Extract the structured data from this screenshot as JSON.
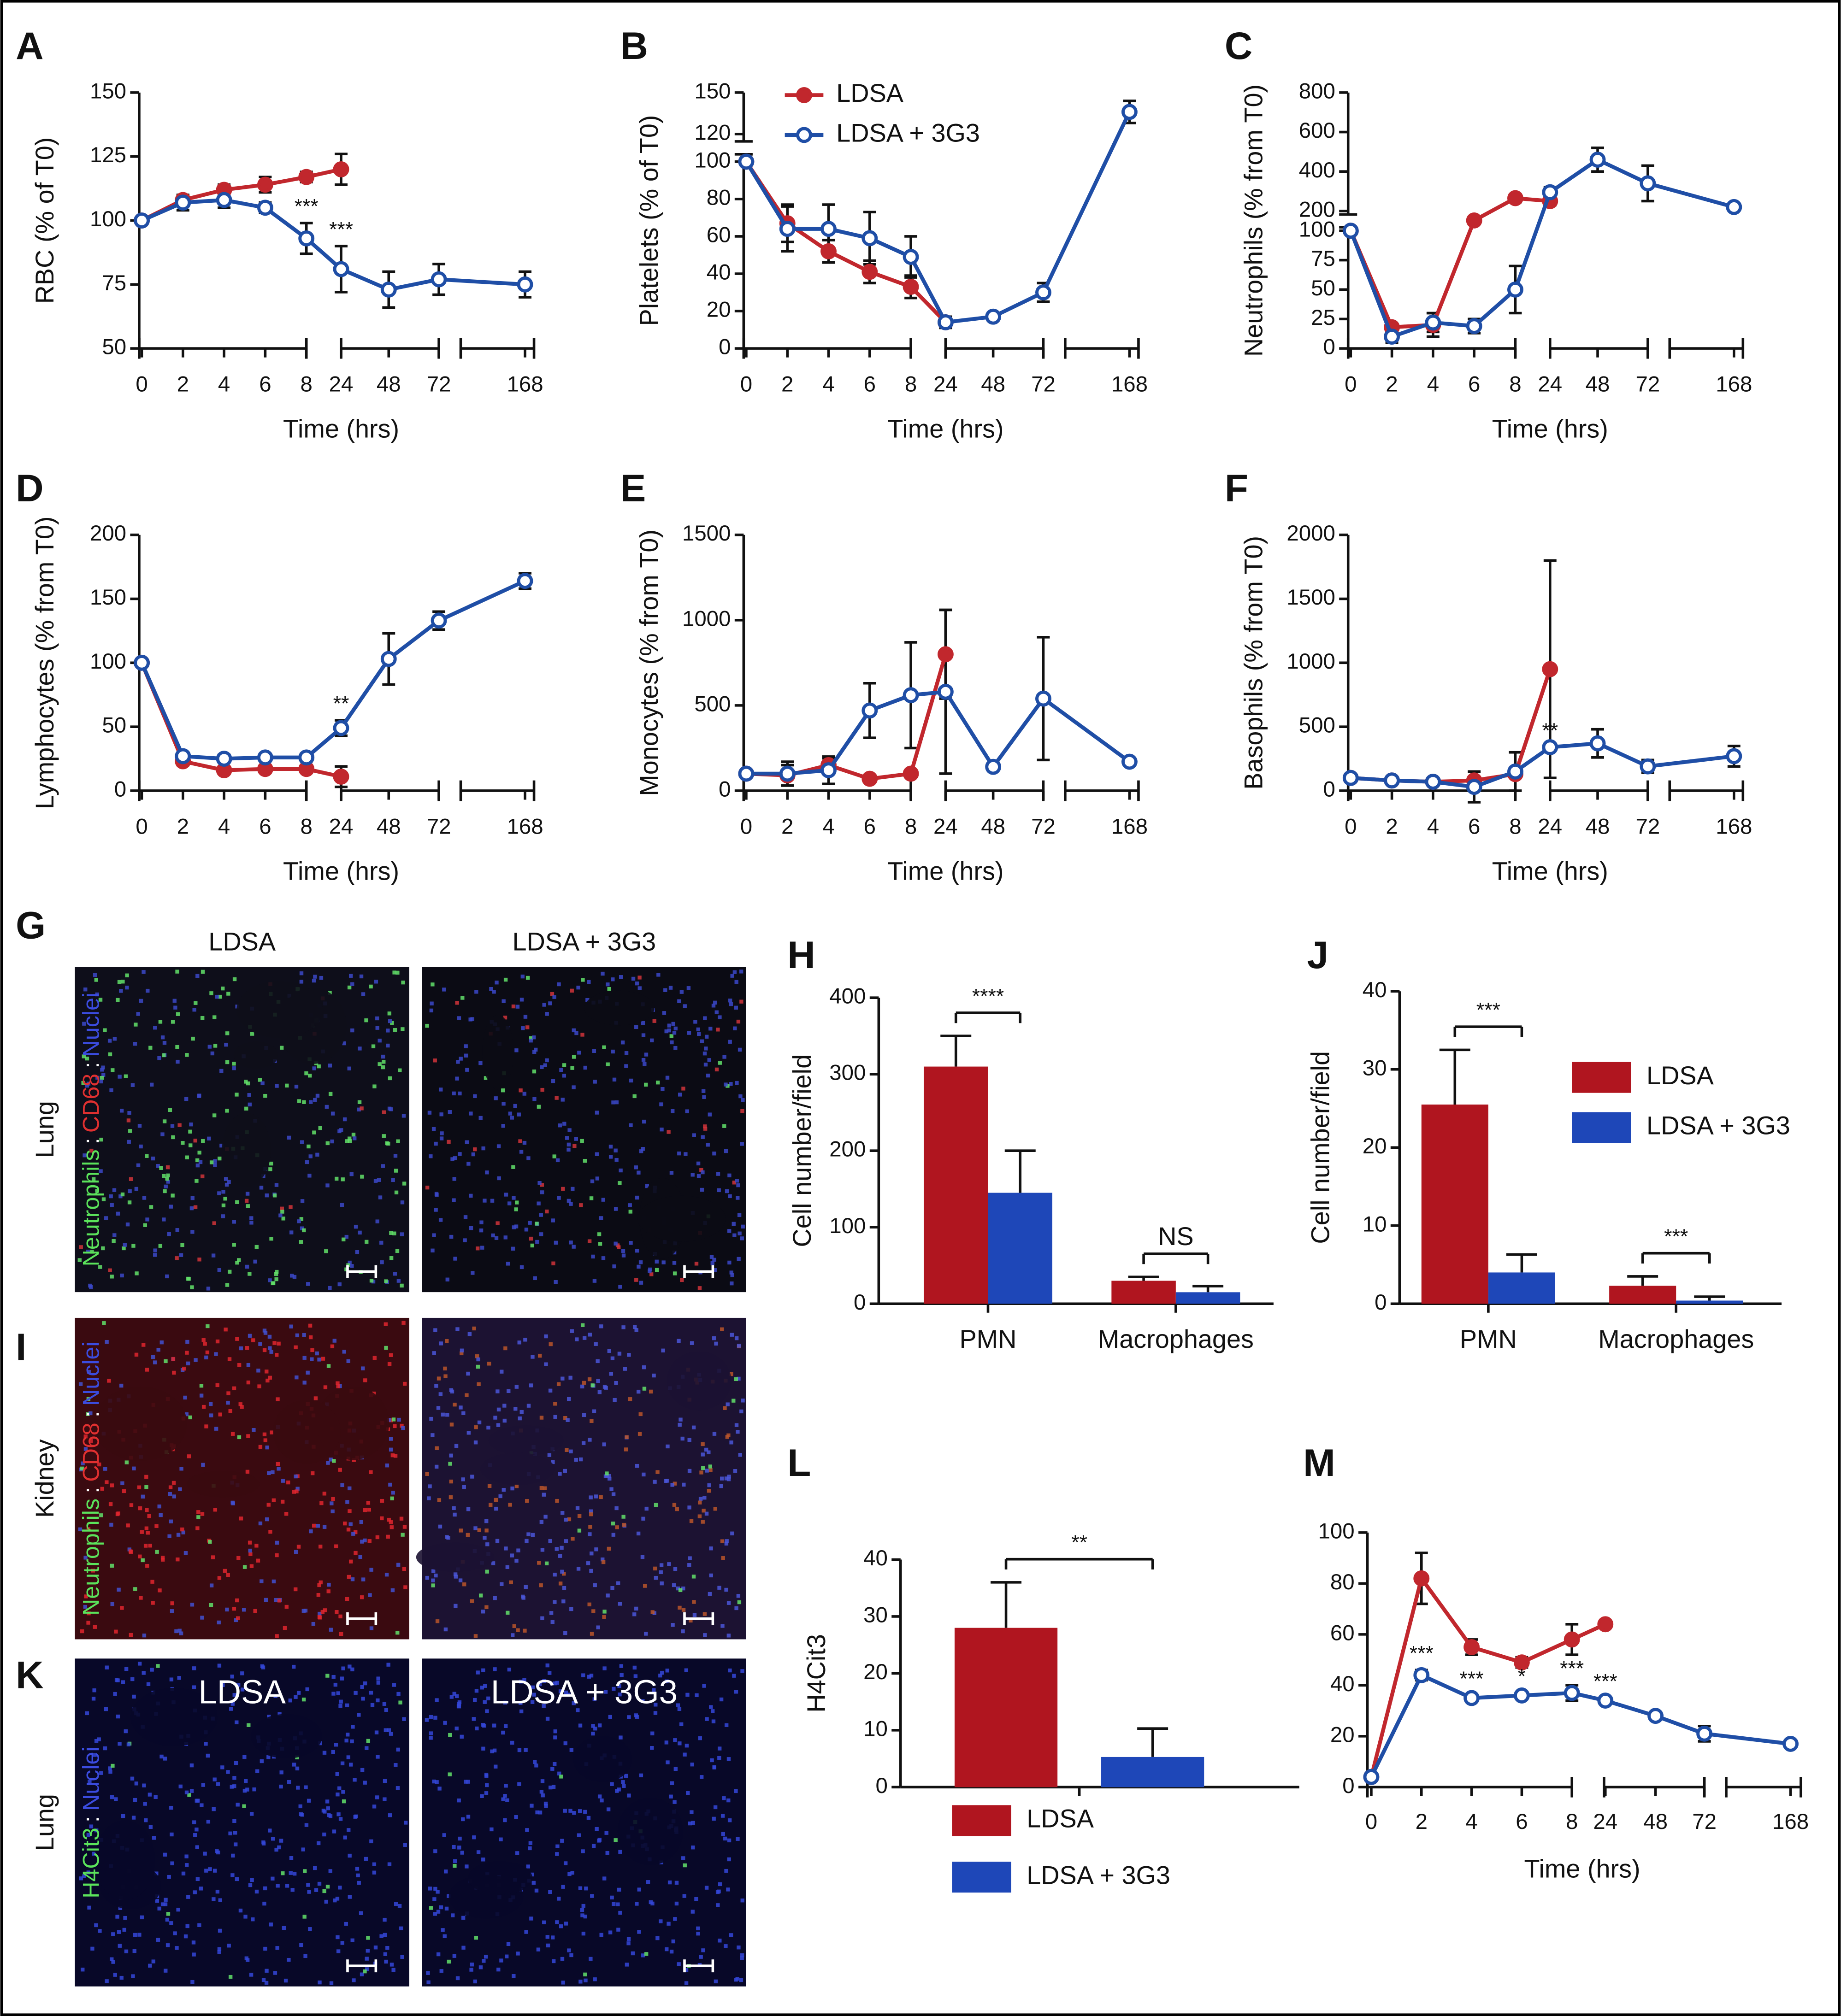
{
  "chart_data": [
    {
      "type": "line",
      "panel": "A",
      "ylabel": "RBC (% of T0)",
      "xlabel": "Time (hrs)",
      "categories": [
        "0",
        "2",
        "4",
        "6",
        "8",
        "24",
        "48",
        "72",
        "168"
      ],
      "ylim": [
        50,
        150
      ],
      "yticks": [
        50,
        75,
        100,
        125,
        150
      ],
      "series": [
        {
          "color": "#c1272d",
          "marker": "filled",
          "values": [
            100,
            108,
            112,
            114,
            117,
            120,
            null,
            null,
            null
          ],
          "errors": [
            0,
            2,
            2,
            3,
            2,
            6,
            null,
            null,
            null
          ]
        },
        {
          "color": "#1f4ea6",
          "marker": "open",
          "values": [
            100,
            107,
            108,
            105,
            93,
            81,
            73,
            77,
            75
          ],
          "errors": [
            0,
            3,
            3,
            2,
            6,
            9,
            7,
            6,
            5
          ]
        }
      ],
      "annotations": [
        null,
        null,
        null,
        null,
        "***",
        "***",
        null,
        null,
        null
      ]
    },
    {
      "type": "line",
      "panel": "B",
      "ylabel": "Platelets (% of T0)",
      "xlabel": "Time (hrs)",
      "categories": [
        "0",
        "2",
        "4",
        "6",
        "8",
        "24",
        "48",
        "72",
        "168"
      ],
      "ylim": [
        0,
        150
      ],
      "yticks": [
        0,
        20,
        40,
        60,
        80,
        100,
        120,
        150
      ],
      "ybreak": 100,
      "series": [
        {
          "name": "LDSA",
          "color": "#c1272d",
          "marker": "filled",
          "values": [
            100,
            67,
            52,
            41,
            33,
            14,
            null,
            null,
            null
          ],
          "errors": [
            0,
            10,
            6,
            6,
            6,
            2,
            null,
            null,
            null
          ]
        },
        {
          "name": "LDSA + 3G3",
          "color": "#1f4ea6",
          "marker": "open",
          "values": [
            100,
            64,
            64,
            59,
            49,
            14,
            17,
            30,
            136
          ],
          "errors": [
            0,
            12,
            13,
            14,
            11,
            3,
            2,
            5,
            8
          ]
        }
      ]
    },
    {
      "type": "line",
      "panel": "C",
      "ylabel": "Neutrophils (% from T0)",
      "xlabel": "Time (hrs)",
      "categories": [
        "0",
        "2",
        "4",
        "6",
        "8",
        "24",
        "48",
        "72",
        "168"
      ],
      "ylim": [
        0,
        800
      ],
      "yticks": [
        0,
        25,
        50,
        75,
        100,
        200,
        400,
        600,
        800
      ],
      "ybreak": 100,
      "series": [
        {
          "color": "#c1272d",
          "marker": "filled",
          "values": [
            100,
            18,
            20,
            152,
            265,
            250,
            null,
            null,
            null
          ],
          "errors": [
            0,
            3,
            10,
            0,
            20,
            20,
            null,
            null,
            null
          ]
        },
        {
          "color": "#1f4ea6",
          "marker": "open",
          "values": [
            100,
            10,
            22,
            19,
            50,
            295,
            460,
            340,
            220
          ],
          "errors": [
            0,
            5,
            8,
            6,
            20,
            25,
            60,
            90,
            0
          ]
        }
      ]
    },
    {
      "type": "line",
      "panel": "D",
      "ylabel": "Lymphocytes (% from T0)",
      "xlabel": "Time (hrs)",
      "categories": [
        "0",
        "2",
        "4",
        "6",
        "8",
        "24",
        "48",
        "72",
        "168"
      ],
      "ylim": [
        0,
        200
      ],
      "yticks": [
        0,
        50,
        100,
        150,
        200
      ],
      "series": [
        {
          "color": "#c1272d",
          "marker": "filled",
          "values": [
            100,
            23,
            16,
            17,
            17,
            11,
            null,
            null,
            null
          ],
          "errors": [
            0,
            3,
            2,
            2,
            3,
            8,
            null,
            null,
            null
          ]
        },
        {
          "color": "#1f4ea6",
          "marker": "open",
          "values": [
            100,
            27,
            25,
            26,
            26,
            49,
            103,
            133,
            164
          ],
          "errors": [
            0,
            3,
            3,
            2,
            3,
            6,
            20,
            7,
            6
          ]
        }
      ],
      "annotations": [
        null,
        null,
        null,
        null,
        null,
        "**",
        null,
        null,
        null
      ]
    },
    {
      "type": "line",
      "panel": "E",
      "ylabel": "Monocytes (% from T0)",
      "xlabel": "Time (hrs)",
      "categories": [
        "0",
        "2",
        "4",
        "6",
        "8",
        "24",
        "48",
        "72",
        "168"
      ],
      "ylim": [
        0,
        1500
      ],
      "yticks": [
        0,
        500,
        1000,
        1500
      ],
      "series": [
        {
          "color": "#c1272d",
          "marker": "filled",
          "values": [
            100,
            90,
            150,
            70,
            100,
            800,
            null,
            null,
            null
          ],
          "errors": [
            0,
            60,
            40,
            0,
            0,
            260,
            null,
            null,
            null
          ]
        },
        {
          "color": "#1f4ea6",
          "marker": "open",
          "values": [
            100,
            100,
            120,
            470,
            560,
            580,
            140,
            540,
            170
          ],
          "errors": [
            0,
            70,
            80,
            160,
            310,
            480,
            0,
            360,
            0
          ]
        }
      ]
    },
    {
      "type": "line",
      "panel": "F",
      "ylabel": "Basophils (% from T0)",
      "xlabel": "Time (hrs)",
      "categories": [
        "0",
        "2",
        "4",
        "6",
        "8",
        "24",
        "48",
        "72",
        "168"
      ],
      "ylim": [
        0,
        2000
      ],
      "yticks": [
        0,
        500,
        1000,
        1500,
        2000
      ],
      "series": [
        {
          "color": "#c1272d",
          "marker": "filled",
          "values": [
            100,
            80,
            70,
            80,
            130,
            950,
            null,
            null,
            null
          ],
          "errors": [
            0,
            0,
            0,
            0,
            0,
            850,
            null,
            null,
            null
          ]
        },
        {
          "color": "#1f4ea6",
          "marker": "open",
          "values": [
            100,
            80,
            70,
            30,
            150,
            340,
            370,
            190,
            270
          ],
          "errors": [
            0,
            0,
            0,
            120,
            150,
            0,
            110,
            50,
            80
          ]
        }
      ],
      "annotations": [
        null,
        null,
        null,
        null,
        null,
        "**",
        null,
        null,
        null
      ]
    },
    {
      "type": "bar",
      "panel": "H",
      "ylabel": "Cell number/field",
      "categories": [
        "PMN",
        "Macrophages"
      ],
      "ylim": [
        0,
        400
      ],
      "yticks": [
        0,
        100,
        200,
        300,
        400
      ],
      "series": [
        {
          "color": "#b0151f",
          "values": [
            310,
            30
          ],
          "errors": [
            40,
            5
          ]
        },
        {
          "color": "#1e47b8",
          "values": [
            145,
            15
          ],
          "errors": [
            55,
            8
          ]
        }
      ],
      "significance": [
        "****",
        "NS"
      ]
    },
    {
      "type": "bar",
      "panel": "J",
      "ylabel": "Cell number/field",
      "categories": [
        "PMN",
        "Macrophages"
      ],
      "ylim": [
        0,
        40
      ],
      "yticks": [
        0,
        10,
        20,
        30,
        40
      ],
      "series": [
        {
          "name": "LDSA",
          "color": "#b0151f",
          "values": [
            25.5,
            2.3
          ],
          "errors": [
            7,
            1.2
          ]
        },
        {
          "name": "LDSA + 3G3",
          "color": "#1e47b8",
          "values": [
            4,
            0.4
          ],
          "errors": [
            2.3,
            0.5
          ]
        }
      ],
      "significance": [
        "***",
        "***"
      ]
    },
    {
      "type": "bar",
      "panel": "L",
      "ylabel": "H4Cit3",
      "categories": [
        null
      ],
      "ylim": [
        0,
        40
      ],
      "yticks": [
        0,
        10,
        20,
        30,
        40
      ],
      "series": [
        {
          "name": "LDSA",
          "color": "#b0151f",
          "values": [
            28
          ],
          "errors": [
            8
          ]
        },
        {
          "name": "LDSA + 3G3",
          "color": "#1e47b8",
          "values": [
            5.3
          ],
          "errors": [
            5
          ]
        }
      ],
      "significance": [
        "**"
      ]
    },
    {
      "type": "line",
      "panel": "M",
      "xlabel": "Time (hrs)",
      "categories": [
        "0",
        "2",
        "4",
        "6",
        "8",
        "24",
        "48",
        "72",
        "168"
      ],
      "ylim": [
        0,
        100
      ],
      "yticks": [
        0,
        20,
        40,
        60,
        80,
        100
      ],
      "series": [
        {
          "color": "#c1272d",
          "marker": "filled",
          "values": [
            4,
            82,
            55,
            49,
            58,
            64,
            null,
            null,
            null
          ],
          "errors": [
            0,
            10,
            3,
            2,
            6,
            0,
            null,
            null,
            null
          ]
        },
        {
          "color": "#1f4ea6",
          "marker": "open",
          "values": [
            4,
            44,
            35,
            36,
            37,
            34,
            28,
            21,
            17
          ],
          "errors": [
            0,
            2,
            1,
            1,
            3,
            1,
            1,
            3,
            1
          ]
        }
      ],
      "annotations": [
        null,
        "***",
        "***",
        "*",
        "***",
        "***",
        null,
        null,
        null
      ]
    }
  ],
  "images": [
    {
      "panel": "G",
      "columns": [
        "LDSA",
        "LDSA + 3G3"
      ],
      "row": "Lung",
      "stain": [
        "Neutrophils",
        ":",
        "CD68",
        ":",
        "Nuclei"
      ]
    },
    {
      "panel": "I",
      "row": "Kidney",
      "stain": [
        "Neutrophils",
        ":",
        "CD68",
        ":",
        "Nuclei"
      ]
    },
    {
      "panel": "K",
      "row": "Lung",
      "labels": [
        "LDSA",
        "LDSA + 3G3"
      ],
      "stain": [
        "H4Cit3",
        ":",
        "Nuclei"
      ]
    }
  ]
}
